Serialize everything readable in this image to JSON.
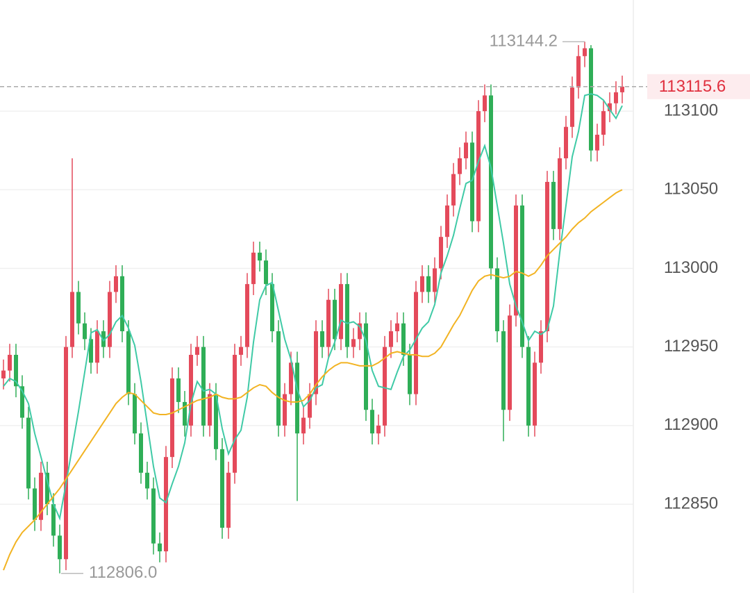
{
  "chart_data": {
    "type": "candlestick",
    "open": [
      112930,
      112935,
      112945,
      112925,
      112905,
      112860,
      112840,
      112870,
      112850,
      112830,
      112815,
      112950,
      112985,
      112965,
      112955,
      112940,
      112960,
      112950,
      112985,
      112995,
      112960,
      112920,
      112895,
      112870,
      112860,
      112825,
      112820,
      112880,
      112930,
      112915,
      112900,
      112945,
      112950,
      112900,
      112920,
      112885,
      112835,
      112870,
      112945,
      112950,
      112990,
      113010,
      113005,
      112990,
      112960,
      112900,
      112920,
      112940,
      112895,
      112905,
      112920,
      112960,
      112950,
      112980,
      112955,
      112990,
      112950,
      112955,
      112965,
      112910,
      112895,
      112900,
      112950,
      112960,
      112965,
      112945,
      112920,
      112985,
      112995,
      112985,
      113000,
      113020,
      113040,
      113060,
      113070,
      113080,
      113030,
      113100,
      113110,
      113000,
      112960,
      112910,
      112970,
      113040,
      112950,
      112900,
      112940,
      112960,
      113055,
      113025,
      113070,
      113090,
      113115,
      113135,
      113140,
      113075,
      113085,
      113100,
      113105,
      113112
    ],
    "high": [
      112942,
      112952,
      112952,
      112932,
      112912,
      112867,
      112877,
      112877,
      112857,
      112837,
      112957,
      113070,
      112992,
      112972,
      112962,
      112967,
      112967,
      112992,
      113002,
      113002,
      112967,
      112927,
      112902,
      112877,
      112867,
      112832,
      112887,
      112937,
      112937,
      112922,
      112952,
      112957,
      112957,
      112927,
      112927,
      112892,
      112877,
      112952,
      112957,
      112997,
      113017,
      113017,
      113012,
      112997,
      112967,
      112927,
      112947,
      112947,
      112912,
      112927,
      112967,
      112967,
      112987,
      112987,
      112997,
      112997,
      112962,
      112972,
      112972,
      112917,
      112907,
      112957,
      112967,
      112972,
      112972,
      112952,
      112992,
      113002,
      113002,
      113007,
      113027,
      113047,
      113067,
      113077,
      113087,
      113087,
      113107,
      113117,
      113117,
      113007,
      112967,
      112977,
      113047,
      113047,
      112957,
      112947,
      112967,
      113062,
      113062,
      113077,
      113097,
      113122,
      113142,
      113144.2,
      113142,
      113092,
      113107,
      113112,
      113119,
      113122.6
    ],
    "low": [
      112923,
      112928,
      112918,
      112898,
      112853,
      112833,
      112833,
      112843,
      112823,
      112806,
      112808,
      112943,
      112958,
      112948,
      112933,
      112933,
      112943,
      112943,
      112978,
      112953,
      112913,
      112888,
      112863,
      112853,
      112818,
      112813,
      112813,
      112873,
      112908,
      112893,
      112893,
      112938,
      112893,
      112893,
      112878,
      112828,
      112828,
      112863,
      112938,
      112943,
      112983,
      112998,
      112983,
      112953,
      112893,
      112893,
      112913,
      112852,
      112888,
      112898,
      112913,
      112943,
      112943,
      112948,
      112948,
      112943,
      112943,
      112948,
      112903,
      112888,
      112888,
      112893,
      112943,
      112953,
      112938,
      112913,
      112913,
      112978,
      112978,
      112978,
      112993,
      113013,
      113033,
      113053,
      113063,
      113023,
      113023,
      113093,
      112993,
      112953,
      112890,
      112903,
      112963,
      112943,
      112893,
      112893,
      112933,
      112953,
      113018,
      113018,
      113063,
      113083,
      113108,
      113128,
      113068,
      113068,
      113078,
      113093,
      113098,
      113105
    ],
    "close": [
      112935,
      112945,
      112925,
      112905,
      112860,
      112840,
      112870,
      112850,
      112830,
      112815,
      112950,
      112985,
      112965,
      112955,
      112940,
      112960,
      112950,
      112985,
      112995,
      112960,
      112920,
      112895,
      112870,
      112860,
      112825,
      112820,
      112880,
      112930,
      112915,
      112900,
      112945,
      112950,
      112900,
      112920,
      112885,
      112835,
      112870,
      112945,
      112950,
      112990,
      113010,
      113005,
      112990,
      112960,
      112900,
      112920,
      112940,
      112895,
      112905,
      112920,
      112960,
      112950,
      112980,
      112955,
      112990,
      112950,
      112955,
      112965,
      112910,
      112895,
      112900,
      112950,
      112960,
      112965,
      112945,
      112920,
      112985,
      112995,
      112985,
      113000,
      113020,
      113040,
      113060,
      113070,
      113080,
      113030,
      113100,
      113110,
      113000,
      112960,
      112910,
      112970,
      113040,
      112950,
      112900,
      112940,
      112960,
      113055,
      113025,
      113070,
      113090,
      113115,
      113135,
      113140,
      113075,
      113085,
      113100,
      113105,
      113112,
      113115.6
    ],
    "up_color": "#e44a5b",
    "down_color": "#2fae57",
    "series": [
      {
        "color": "#3fcaa6",
        "values": [
          112925,
          112930,
          112928,
          112922,
          112914,
          112895,
          112880,
          112865,
          112850,
          112841,
          112863,
          112886,
          112909,
          112934,
          112959,
          112961,
          112954,
          112958,
          112966,
          112970,
          112962,
          112951,
          112928,
          112901,
          112874,
          112854,
          112851,
          112863,
          112874,
          112889,
          112914,
          112928,
          112922,
          112923,
          112920,
          112898,
          112882,
          112891,
          112897,
          112918,
          112953,
          112980,
          112989,
          112991,
          112973,
          112955,
          112942,
          112923,
          112912,
          112916,
          112924,
          112926,
          112943,
          112953,
          112967,
          112965,
          112966,
          112963,
          112954,
          112935,
          112925,
          112924,
          112923,
          112934,
          112944,
          112948,
          112955,
          112962,
          112966,
          112977,
          112997,
          113008,
          113021,
          113038,
          113054,
          113056,
          113068,
          113078,
          113064,
          113040,
          113016,
          112990,
          112976,
          112966,
          112954,
          112960,
          112958,
          112961,
          112976,
          113010,
          113040,
          113071,
          113087,
          113110,
          113111,
          113110,
          113107,
          113101,
          113095.4,
          113103.5
        ]
      },
      {
        "color": "#f2b322",
        "values": [
          112808,
          112818,
          112826,
          112832,
          112836,
          112840,
          112845,
          112850,
          112855,
          112860,
          112866,
          112872,
          112878,
          112884,
          112890,
          112896,
          112902,
          112908,
          112914,
          112918,
          112921,
          112920,
          112916,
          112912,
          112908,
          112907,
          112907,
          112908,
          112910,
          112912,
          112914,
          112916,
          112917,
          112918,
          112920,
          112918,
          112917,
          112917,
          112918,
          112921,
          112924,
          112926,
          112925,
          112921,
          112918,
          112916,
          112915,
          112915,
          112916,
          112920,
          112926,
          112931,
          112935,
          112938,
          112940,
          112940,
          112939,
          112938,
          112938,
          112938,
          112940,
          112943,
          112946,
          112947,
          112946,
          112945,
          112945,
          112944,
          112944,
          112946,
          112950,
          112957,
          112964,
          112970,
          112978,
          112986,
          112992,
          112995,
          112996,
          112995,
          112994,
          112995,
          112998,
          112997,
          112995,
          112997,
          113002,
          113008,
          113012,
          113016,
          113020,
          113025,
          113029,
          113032,
          113036,
          113039,
          113042,
          113045,
          113048,
          113050
        ]
      }
    ],
    "ylim": [
      112793.5,
      113170.7
    ],
    "yticks": [
      112850,
      112900,
      112950,
      113000,
      113050,
      113100
    ],
    "grid": true,
    "last_price": 113115.6,
    "last_price_color": "#e0303f",
    "high_label": 113144.2,
    "low_label": {
      "value": 112806,
      "label": "112806.0"
    }
  }
}
